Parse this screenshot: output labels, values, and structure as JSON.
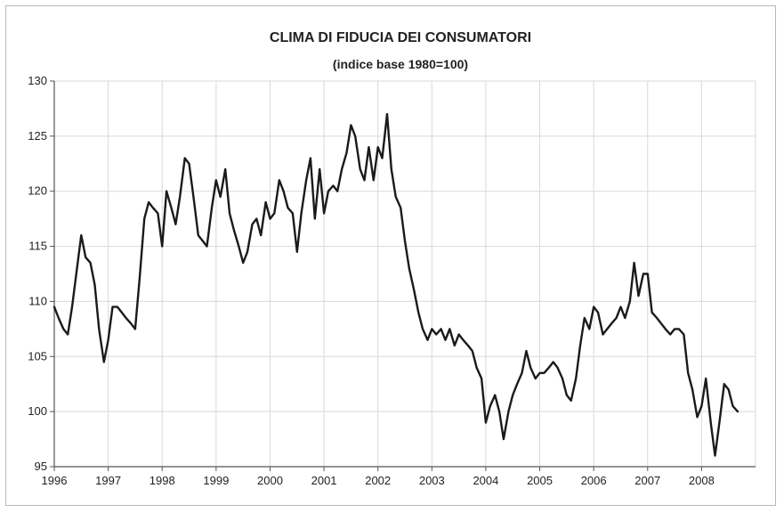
{
  "chart_data": {
    "type": "line",
    "title": "CLIMA DI FIDUCIA DEI CONSUMATORI",
    "subtitle": "(indice base 1980=100)",
    "xlabel": "",
    "ylabel": "",
    "x_tick_labels": [
      "1996",
      "1997",
      "1998",
      "1999",
      "2000",
      "2001",
      "2002",
      "2003",
      "2004",
      "2005",
      "2006",
      "2007",
      "2008"
    ],
    "y_tick_labels": [
      "95",
      "100",
      "105",
      "110",
      "115",
      "120",
      "125",
      "130"
    ],
    "ylim": [
      95,
      130
    ],
    "xlim": [
      1996,
      2009
    ],
    "grid": true,
    "legend": "none",
    "series": [
      {
        "color": "#1a1a1a",
        "points": [
          [
            1996.0,
            109.5
          ],
          [
            1996.08,
            108.5
          ],
          [
            1996.17,
            107.5
          ],
          [
            1996.25,
            107.0
          ],
          [
            1996.33,
            109.5
          ],
          [
            1996.42,
            113.0
          ],
          [
            1996.5,
            116.0
          ],
          [
            1996.58,
            114.0
          ],
          [
            1996.67,
            113.5
          ],
          [
            1996.75,
            111.5
          ],
          [
            1996.83,
            107.5
          ],
          [
            1996.92,
            104.5
          ],
          [
            1997.0,
            106.5
          ],
          [
            1997.08,
            109.5
          ],
          [
            1997.17,
            109.5
          ],
          [
            1997.25,
            109.0
          ],
          [
            1997.33,
            108.5
          ],
          [
            1997.42,
            108.0
          ],
          [
            1997.5,
            107.5
          ],
          [
            1997.58,
            112.0
          ],
          [
            1997.67,
            117.5
          ],
          [
            1997.75,
            119.0
          ],
          [
            1997.83,
            118.5
          ],
          [
            1997.92,
            118.0
          ],
          [
            1998.0,
            115.0
          ],
          [
            1998.08,
            120.0
          ],
          [
            1998.17,
            118.5
          ],
          [
            1998.25,
            117.0
          ],
          [
            1998.33,
            119.5
          ],
          [
            1998.42,
            123.0
          ],
          [
            1998.5,
            122.5
          ],
          [
            1998.58,
            119.5
          ],
          [
            1998.67,
            116.0
          ],
          [
            1998.75,
            115.5
          ],
          [
            1998.83,
            115.0
          ],
          [
            1998.92,
            118.5
          ],
          [
            1999.0,
            121.0
          ],
          [
            1999.08,
            119.5
          ],
          [
            1999.17,
            122.0
          ],
          [
            1999.25,
            118.0
          ],
          [
            1999.33,
            116.5
          ],
          [
            1999.42,
            115.0
          ],
          [
            1999.5,
            113.5
          ],
          [
            1999.58,
            114.5
          ],
          [
            1999.67,
            117.0
          ],
          [
            1999.75,
            117.5
          ],
          [
            1999.83,
            116.0
          ],
          [
            1999.92,
            119.0
          ],
          [
            2000.0,
            117.5
          ],
          [
            2000.08,
            118.0
          ],
          [
            2000.17,
            121.0
          ],
          [
            2000.25,
            120.0
          ],
          [
            2000.33,
            118.5
          ],
          [
            2000.42,
            118.0
          ],
          [
            2000.5,
            114.5
          ],
          [
            2000.58,
            118.0
          ],
          [
            2000.67,
            121.0
          ],
          [
            2000.75,
            123.0
          ],
          [
            2000.83,
            117.5
          ],
          [
            2000.92,
            122.0
          ],
          [
            2001.0,
            118.0
          ],
          [
            2001.08,
            120.0
          ],
          [
            2001.17,
            120.5
          ],
          [
            2001.25,
            120.0
          ],
          [
            2001.33,
            122.0
          ],
          [
            2001.42,
            123.5
          ],
          [
            2001.5,
            126.0
          ],
          [
            2001.58,
            125.0
          ],
          [
            2001.67,
            122.0
          ],
          [
            2001.75,
            121.0
          ],
          [
            2001.83,
            124.0
          ],
          [
            2001.92,
            121.0
          ],
          [
            2002.0,
            124.0
          ],
          [
            2002.08,
            123.0
          ],
          [
            2002.17,
            127.0
          ],
          [
            2002.25,
            122.0
          ],
          [
            2002.33,
            119.5
          ],
          [
            2002.42,
            118.5
          ],
          [
            2002.5,
            115.5
          ],
          [
            2002.58,
            113.0
          ],
          [
            2002.67,
            111.0
          ],
          [
            2002.75,
            109.0
          ],
          [
            2002.83,
            107.5
          ],
          [
            2002.92,
            106.5
          ],
          [
            2003.0,
            107.5
          ],
          [
            2003.08,
            107.0
          ],
          [
            2003.17,
            107.5
          ],
          [
            2003.25,
            106.5
          ],
          [
            2003.33,
            107.5
          ],
          [
            2003.42,
            106.0
          ],
          [
            2003.5,
            107.0
          ],
          [
            2003.58,
            106.5
          ],
          [
            2003.67,
            106.0
          ],
          [
            2003.75,
            105.5
          ],
          [
            2003.83,
            104.0
          ],
          [
            2003.92,
            103.0
          ],
          [
            2004.0,
            99.0
          ],
          [
            2004.08,
            100.5
          ],
          [
            2004.17,
            101.5
          ],
          [
            2004.25,
            100.0
          ],
          [
            2004.33,
            97.5
          ],
          [
            2004.42,
            100.0
          ],
          [
            2004.5,
            101.5
          ],
          [
            2004.58,
            102.5
          ],
          [
            2004.67,
            103.5
          ],
          [
            2004.75,
            105.5
          ],
          [
            2004.83,
            104.0
          ],
          [
            2004.92,
            103.0
          ],
          [
            2005.0,
            103.5
          ],
          [
            2005.08,
            103.5
          ],
          [
            2005.17,
            104.0
          ],
          [
            2005.25,
            104.5
          ],
          [
            2005.33,
            104.0
          ],
          [
            2005.42,
            103.0
          ],
          [
            2005.5,
            101.5
          ],
          [
            2005.58,
            101.0
          ],
          [
            2005.67,
            103.0
          ],
          [
            2005.75,
            106.0
          ],
          [
            2005.83,
            108.5
          ],
          [
            2005.92,
            107.5
          ],
          [
            2006.0,
            109.5
          ],
          [
            2006.08,
            109.0
          ],
          [
            2006.17,
            107.0
          ],
          [
            2006.25,
            107.5
          ],
          [
            2006.33,
            108.0
          ],
          [
            2006.42,
            108.5
          ],
          [
            2006.5,
            109.5
          ],
          [
            2006.58,
            108.5
          ],
          [
            2006.67,
            110.0
          ],
          [
            2006.75,
            113.5
          ],
          [
            2006.83,
            110.5
          ],
          [
            2006.92,
            112.5
          ],
          [
            2007.0,
            112.5
          ],
          [
            2007.08,
            109.0
          ],
          [
            2007.17,
            108.5
          ],
          [
            2007.25,
            108.0
          ],
          [
            2007.33,
            107.5
          ],
          [
            2007.42,
            107.0
          ],
          [
            2007.5,
            107.5
          ],
          [
            2007.58,
            107.5
          ],
          [
            2007.67,
            107.0
          ],
          [
            2007.75,
            103.5
          ],
          [
            2007.83,
            102.0
          ],
          [
            2007.92,
            99.5
          ],
          [
            2008.0,
            100.5
          ],
          [
            2008.08,
            103.0
          ],
          [
            2008.17,
            99.0
          ],
          [
            2008.25,
            96.0
          ],
          [
            2008.33,
            99.0
          ],
          [
            2008.42,
            102.5
          ],
          [
            2008.5,
            102.0
          ],
          [
            2008.58,
            100.5
          ],
          [
            2008.67,
            100.0
          ]
        ]
      }
    ]
  }
}
